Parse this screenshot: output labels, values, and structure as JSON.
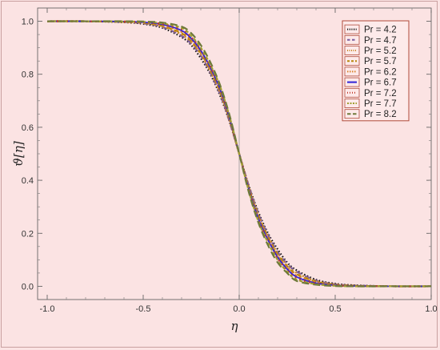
{
  "chart_data": {
    "type": "line",
    "title": "",
    "xlabel": "η",
    "ylabel": "ϑ[η]",
    "xlim": [
      -1.05,
      1.0
    ],
    "ylim": [
      -0.05,
      1.05
    ],
    "x_ticks": [
      -1.0,
      -0.5,
      0.0,
      0.5,
      1.0
    ],
    "x_tick_labels": [
      "-1.0",
      "-0.5",
      "0.0",
      "0.5",
      "1.0"
    ],
    "y_ticks": [
      0.0,
      0.2,
      0.4,
      0.6,
      0.8,
      1.0
    ],
    "y_tick_labels": [
      "0.0",
      "0.2",
      "0.4",
      "0.6",
      "0.8",
      "1.0"
    ],
    "grid": false,
    "legend_position": "top-right",
    "x": [
      -1.0,
      -0.8,
      -0.6,
      -0.5,
      -0.4,
      -0.3,
      -0.25,
      -0.2,
      -0.15,
      -0.1,
      -0.05,
      0.0,
      0.05,
      0.1,
      0.15,
      0.2,
      0.25,
      0.3,
      0.4,
      0.5,
      0.6,
      0.8,
      1.0
    ],
    "series": [
      {
        "name": "Pr = 4.2",
        "color": "#111111",
        "dash": "1.5,2.5",
        "values": [
          1.0,
          1.0,
          0.996,
          0.99,
          0.975,
          0.94,
          0.91,
          0.86,
          0.8,
          0.72,
          0.62,
          0.5,
          0.38,
          0.28,
          0.2,
          0.14,
          0.09,
          0.06,
          0.025,
          0.01,
          0.004,
          0.0,
          0.0
        ]
      },
      {
        "name": "Pr = 4.7",
        "color": "#7a5a9e",
        "dash": "7,5",
        "values": [
          1.0,
          1.0,
          0.997,
          0.992,
          0.978,
          0.945,
          0.915,
          0.87,
          0.805,
          0.725,
          0.62,
          0.5,
          0.38,
          0.275,
          0.195,
          0.13,
          0.085,
          0.055,
          0.022,
          0.008,
          0.003,
          0.0,
          0.0
        ]
      },
      {
        "name": "Pr = 5.2",
        "color": "#c98a2a",
        "dash": "2,3",
        "values": [
          1.0,
          1.0,
          0.997,
          0.993,
          0.98,
          0.95,
          0.92,
          0.875,
          0.81,
          0.73,
          0.625,
          0.5,
          0.375,
          0.27,
          0.19,
          0.125,
          0.08,
          0.05,
          0.02,
          0.007,
          0.002,
          0.0,
          0.0
        ]
      },
      {
        "name": "Pr = 5.7",
        "color": "#b8860b",
        "dash": "6,4",
        "values": [
          1.0,
          1.0,
          0.998,
          0.994,
          0.982,
          0.955,
          0.925,
          0.88,
          0.815,
          0.735,
          0.628,
          0.5,
          0.372,
          0.265,
          0.185,
          0.12,
          0.075,
          0.045,
          0.018,
          0.006,
          0.002,
          0.0,
          0.0
        ]
      },
      {
        "name": "Pr = 6.2",
        "color": "#d9822b",
        "dash": "3,3",
        "values": [
          1.0,
          1.0,
          0.998,
          0.995,
          0.985,
          0.96,
          0.93,
          0.885,
          0.82,
          0.74,
          0.63,
          0.5,
          0.37,
          0.26,
          0.18,
          0.115,
          0.07,
          0.04,
          0.015,
          0.005,
          0.001,
          0.0,
          0.0
        ]
      },
      {
        "name": "Pr = 6.7",
        "color": "#2f22d6",
        "dash": "",
        "values": [
          1.0,
          1.0,
          0.999,
          0.996,
          0.988,
          0.965,
          0.935,
          0.89,
          0.825,
          0.745,
          0.633,
          0.5,
          0.367,
          0.255,
          0.175,
          0.11,
          0.065,
          0.035,
          0.012,
          0.004,
          0.001,
          0.0,
          0.0
        ]
      },
      {
        "name": "Pr = 7.2",
        "color": "#c0392b",
        "dash": "2,4",
        "values": [
          1.0,
          1.0,
          0.999,
          0.997,
          0.99,
          0.97,
          0.94,
          0.895,
          0.83,
          0.75,
          0.636,
          0.5,
          0.364,
          0.25,
          0.17,
          0.105,
          0.06,
          0.03,
          0.01,
          0.003,
          0.001,
          0.0,
          0.0
        ]
      },
      {
        "name": "Pr = 7.7",
        "color": "#a0a030",
        "dash": "4,3",
        "values": [
          1.0,
          1.0,
          0.999,
          0.998,
          0.992,
          0.975,
          0.945,
          0.9,
          0.835,
          0.755,
          0.64,
          0.5,
          0.36,
          0.245,
          0.165,
          0.1,
          0.055,
          0.025,
          0.008,
          0.002,
          0.0,
          0.0,
          0.0
        ]
      },
      {
        "name": "Pr = 8.2",
        "color": "#6f7a3a",
        "dash": "9,5",
        "values": [
          1.0,
          1.0,
          1.0,
          0.999,
          0.995,
          0.98,
          0.955,
          0.91,
          0.845,
          0.76,
          0.645,
          0.5,
          0.355,
          0.24,
          0.155,
          0.09,
          0.05,
          0.02,
          0.006,
          0.001,
          0.0,
          0.0,
          0.0
        ]
      }
    ]
  }
}
